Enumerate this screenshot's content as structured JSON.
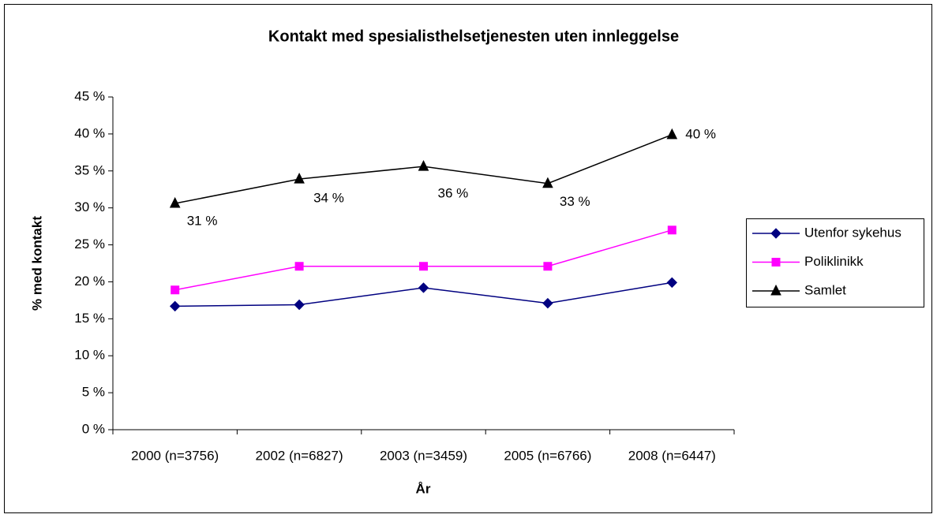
{
  "chart_data": {
    "type": "line",
    "title": "Kontakt med spesialisthelsetjenesten uten innleggelse",
    "x_label": "År",
    "y_label": "% med kontakt",
    "categories": [
      "2000 (n=3756)",
      "2002 (n=6827)",
      "2003 (n=3459)",
      "2005 (n=6766)",
      "2008 (n=6447)"
    ],
    "series": [
      {
        "name": "Utenfor sykehus",
        "color": "#000080",
        "marker": "diamond",
        "values": [
          16.7,
          16.9,
          19.2,
          17.1,
          19.9
        ]
      },
      {
        "name": "Poliklinikk",
        "color": "#ff00ff",
        "marker": "square",
        "values": [
          18.9,
          22.1,
          22.1,
          22.1,
          27.0
        ]
      },
      {
        "name": "Samlet",
        "color": "#000000",
        "marker": "triangle",
        "values": [
          30.6,
          33.9,
          35.6,
          33.3,
          39.9
        ],
        "value_labels": [
          "31 %",
          "34 %",
          "36 %",
          "33 %",
          "40 %"
        ]
      }
    ],
    "ylim": [
      0,
      45
    ],
    "yticks": [
      {
        "value": 0,
        "label": "0 %"
      },
      {
        "value": 5,
        "label": "5 %"
      },
      {
        "value": 10,
        "label": "10 %"
      },
      {
        "value": 15,
        "label": "15 %"
      },
      {
        "value": 20,
        "label": "20 %"
      },
      {
        "value": 25,
        "label": "25 %"
      },
      {
        "value": 30,
        "label": "30 %"
      },
      {
        "value": 35,
        "label": "35 %"
      },
      {
        "value": 40,
        "label": "40 %"
      },
      {
        "value": 45,
        "label": "45 %"
      }
    ],
    "grid": false,
    "legend": "right"
  }
}
